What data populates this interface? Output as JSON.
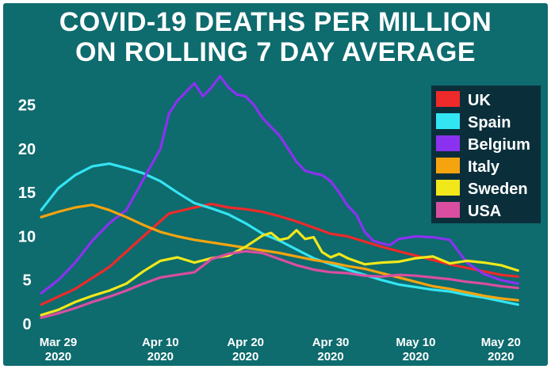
{
  "title_line1": "COVID-19 DEATHS PER MILLION",
  "title_line2": "ON ROLLING 7 DAY AVERAGE",
  "chart_data": {
    "type": "line",
    "title": "COVID-19 DEATHS PER MILLION ON ROLLING 7 DAY AVERAGE",
    "xlabel": "",
    "ylabel": "",
    "x_range": [
      0,
      57
    ],
    "ylim": [
      0,
      28.5
    ],
    "y_ticks": [
      0,
      5,
      10,
      15,
      20,
      25
    ],
    "x_ticks": [
      {
        "at": 2,
        "line1": "Mar 29",
        "line2": "2020"
      },
      {
        "at": 14,
        "line1": "Apr 10",
        "line2": "2020"
      },
      {
        "at": 24,
        "line1": "Apr 20",
        "line2": "2020"
      },
      {
        "at": 34,
        "line1": "Apr 30",
        "line2": "2020"
      },
      {
        "at": 44,
        "line1": "May 10",
        "line2": "2020"
      },
      {
        "at": 54,
        "line1": "May 20",
        "line2": "2020"
      }
    ],
    "legend_position": "top-right",
    "grid": false,
    "series": [
      {
        "name": "UK",
        "color": "#ee2a2a",
        "points": [
          [
            0,
            2.2
          ],
          [
            4,
            4
          ],
          [
            8,
            6.5
          ],
          [
            12,
            10
          ],
          [
            15,
            12.6
          ],
          [
            18,
            13.3
          ],
          [
            20,
            13.7
          ],
          [
            22,
            13.3
          ],
          [
            24,
            13.1
          ],
          [
            26,
            12.8
          ],
          [
            28,
            12.3
          ],
          [
            30,
            11.7
          ],
          [
            32,
            11
          ],
          [
            34,
            10.3
          ],
          [
            36,
            10
          ],
          [
            38,
            9.4
          ],
          [
            40,
            8.8
          ],
          [
            42,
            8.3
          ],
          [
            44,
            7.8
          ],
          [
            46,
            7.3
          ],
          [
            48,
            6.8
          ],
          [
            50,
            6.4
          ],
          [
            52,
            6
          ],
          [
            54,
            5.6
          ],
          [
            56,
            5.4
          ]
        ]
      },
      {
        "name": "Spain",
        "color": "#33e4f2",
        "points": [
          [
            0,
            13
          ],
          [
            2,
            15.5
          ],
          [
            4,
            17
          ],
          [
            6,
            18
          ],
          [
            8,
            18.3
          ],
          [
            10,
            17.8
          ],
          [
            12,
            17.2
          ],
          [
            14,
            16.3
          ],
          [
            16,
            15
          ],
          [
            18,
            13.8
          ],
          [
            20,
            13.2
          ],
          [
            22,
            12.5
          ],
          [
            24,
            11.5
          ],
          [
            26,
            10.3
          ],
          [
            28,
            9.5
          ],
          [
            30,
            8.5
          ],
          [
            32,
            7.5
          ],
          [
            34,
            6.8
          ],
          [
            36,
            6.2
          ],
          [
            38,
            5.6
          ],
          [
            40,
            5
          ],
          [
            42,
            4.5
          ],
          [
            44,
            4.2
          ],
          [
            46,
            3.9
          ],
          [
            48,
            3.7
          ],
          [
            50,
            3.3
          ],
          [
            52,
            3
          ],
          [
            54,
            2.6
          ],
          [
            56,
            2.2
          ]
        ]
      },
      {
        "name": "Belgium",
        "color": "#8a32f0",
        "points": [
          [
            0,
            3.5
          ],
          [
            2,
            5
          ],
          [
            4,
            7
          ],
          [
            6,
            9.5
          ],
          [
            8,
            11.5
          ],
          [
            10,
            13
          ],
          [
            12,
            16.5
          ],
          [
            14,
            20
          ],
          [
            15,
            24
          ],
          [
            16,
            25.5
          ],
          [
            17,
            26.5
          ],
          [
            18,
            27.5
          ],
          [
            19,
            26
          ],
          [
            20,
            27
          ],
          [
            21,
            28.3
          ],
          [
            22,
            27
          ],
          [
            23,
            26.2
          ],
          [
            24,
            26
          ],
          [
            25,
            25
          ],
          [
            26,
            23.5
          ],
          [
            27,
            22.5
          ],
          [
            28,
            21.5
          ],
          [
            29,
            20
          ],
          [
            30,
            18.5
          ],
          [
            31,
            17.5
          ],
          [
            32,
            17.2
          ],
          [
            33,
            17
          ],
          [
            34,
            16.3
          ],
          [
            35,
            15
          ],
          [
            36,
            13.5
          ],
          [
            37,
            12.5
          ],
          [
            38,
            10.5
          ],
          [
            39,
            9.5
          ],
          [
            40,
            9.2
          ],
          [
            41,
            9
          ],
          [
            42,
            9.7
          ],
          [
            44,
            10
          ],
          [
            46,
            9.9
          ],
          [
            48,
            9.6
          ],
          [
            50,
            7
          ],
          [
            52,
            5.7
          ],
          [
            54,
            5
          ],
          [
            56,
            4.6
          ]
        ]
      },
      {
        "name": "Italy",
        "color": "#f5a40f",
        "points": [
          [
            0,
            12.2
          ],
          [
            2,
            12.8
          ],
          [
            4,
            13.3
          ],
          [
            6,
            13.6
          ],
          [
            8,
            13
          ],
          [
            10,
            12.2
          ],
          [
            12,
            11.3
          ],
          [
            14,
            10.5
          ],
          [
            16,
            10
          ],
          [
            18,
            9.6
          ],
          [
            20,
            9.3
          ],
          [
            22,
            9
          ],
          [
            24,
            8.7
          ],
          [
            26,
            8.4
          ],
          [
            28,
            8.1
          ],
          [
            30,
            7.7
          ],
          [
            32,
            7.3
          ],
          [
            34,
            7
          ],
          [
            36,
            6.6
          ],
          [
            38,
            6.3
          ],
          [
            40,
            5.8
          ],
          [
            42,
            5.3
          ],
          [
            44,
            4.8
          ],
          [
            46,
            4.3
          ],
          [
            48,
            4
          ],
          [
            50,
            3.6
          ],
          [
            52,
            3.2
          ],
          [
            54,
            2.9
          ],
          [
            56,
            2.7
          ]
        ]
      },
      {
        "name": "Sweden",
        "color": "#f0e81a",
        "points": [
          [
            0,
            1
          ],
          [
            2,
            1.6
          ],
          [
            4,
            2.5
          ],
          [
            6,
            3.2
          ],
          [
            8,
            3.8
          ],
          [
            10,
            4.6
          ],
          [
            12,
            6
          ],
          [
            14,
            7.2
          ],
          [
            16,
            7.6
          ],
          [
            18,
            7
          ],
          [
            20,
            7.5
          ],
          [
            22,
            7.8
          ],
          [
            24,
            8.8
          ],
          [
            26,
            10.1
          ],
          [
            27,
            10.4
          ],
          [
            28,
            9.6
          ],
          [
            29,
            9.8
          ],
          [
            30,
            10.7
          ],
          [
            31,
            9.7
          ],
          [
            32,
            9.9
          ],
          [
            33,
            8.2
          ],
          [
            34,
            7.6
          ],
          [
            35,
            8
          ],
          [
            36,
            7.5
          ],
          [
            38,
            6.8
          ],
          [
            40,
            7
          ],
          [
            42,
            7.1
          ],
          [
            44,
            7.5
          ],
          [
            46,
            7.7
          ],
          [
            48,
            6.9
          ],
          [
            50,
            7.2
          ],
          [
            52,
            7
          ],
          [
            54,
            6.7
          ],
          [
            56,
            6.1
          ]
        ]
      },
      {
        "name": "USA",
        "color": "#d94ea0",
        "points": [
          [
            0,
            0.7
          ],
          [
            2,
            1.2
          ],
          [
            4,
            1.8
          ],
          [
            6,
            2.5
          ],
          [
            8,
            3.1
          ],
          [
            10,
            3.8
          ],
          [
            12,
            4.6
          ],
          [
            14,
            5.3
          ],
          [
            16,
            5.6
          ],
          [
            18,
            5.9
          ],
          [
            20,
            7.4
          ],
          [
            22,
            8
          ],
          [
            24,
            8.3
          ],
          [
            26,
            8.1
          ],
          [
            28,
            7.4
          ],
          [
            30,
            6.7
          ],
          [
            32,
            6.2
          ],
          [
            34,
            5.9
          ],
          [
            36,
            5.8
          ],
          [
            38,
            5.5
          ],
          [
            40,
            5.4
          ],
          [
            42,
            5.6
          ],
          [
            44,
            5.5
          ],
          [
            46,
            5.3
          ],
          [
            48,
            5.1
          ],
          [
            50,
            4.8
          ],
          [
            52,
            4.6
          ],
          [
            54,
            4.3
          ],
          [
            56,
            4.1
          ]
        ]
      }
    ]
  }
}
